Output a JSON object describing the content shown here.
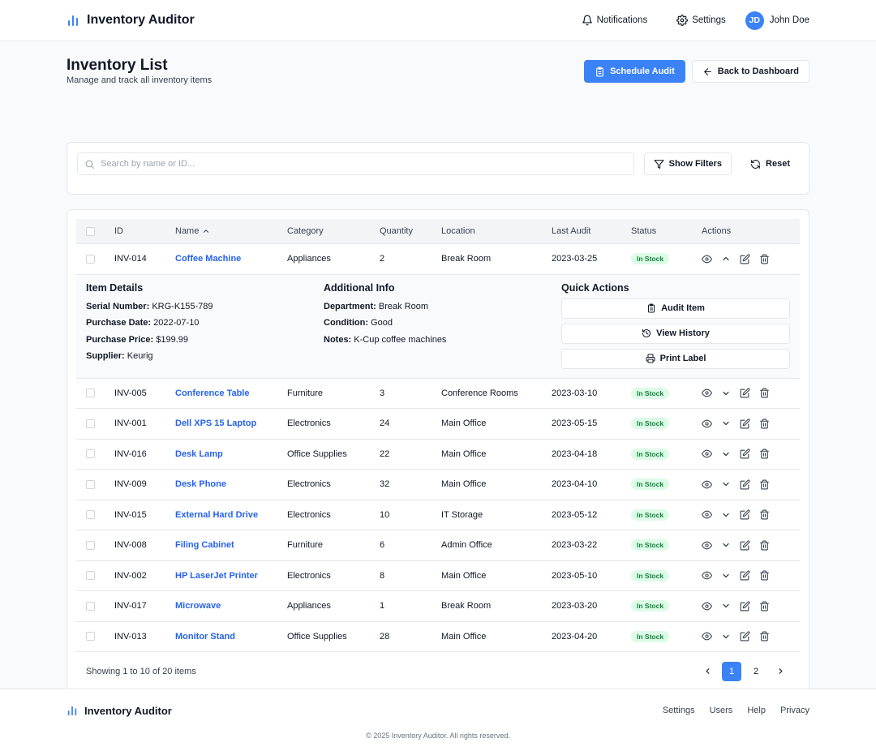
{
  "header": {
    "title": "Inventory Auditor",
    "notifications": "Notifications",
    "settings": "Settings",
    "user_initials": "JD",
    "user_name": "John Doe"
  },
  "page": {
    "title": "Inventory List",
    "subtitle": "Manage and track all inventory items",
    "schedule_audit": "Schedule Audit",
    "back_to_dashboard": "Back to Dashboard"
  },
  "search": {
    "placeholder": "Search by name or ID...",
    "show_filters": "Show Filters",
    "reset": "Reset"
  },
  "table": {
    "columns": [
      "ID",
      "Name",
      "Category",
      "Quantity",
      "Location",
      "Last Audit",
      "Status",
      "Actions"
    ],
    "rows": [
      {
        "id": "INV-014",
        "name": "Coffee Machine",
        "category": "Appliances",
        "quantity": "2",
        "location": "Break Room",
        "last_audit": "2023-03-25",
        "status": "In Stock"
      },
      {
        "id": "INV-005",
        "name": "Conference Table",
        "category": "Furniture",
        "quantity": "3",
        "location": "Conference Rooms",
        "last_audit": "2023-03-10",
        "status": "In Stock"
      },
      {
        "id": "INV-001",
        "name": "Dell XPS 15 Laptop",
        "category": "Electronics",
        "quantity": "24",
        "location": "Main Office",
        "last_audit": "2023-05-15",
        "status": "In Stock"
      },
      {
        "id": "INV-016",
        "name": "Desk Lamp",
        "category": "Office Supplies",
        "quantity": "22",
        "location": "Main Office",
        "last_audit": "2023-04-18",
        "status": "In Stock"
      },
      {
        "id": "INV-009",
        "name": "Desk Phone",
        "category": "Electronics",
        "quantity": "32",
        "location": "Main Office",
        "last_audit": "2023-04-10",
        "status": "In Stock"
      },
      {
        "id": "INV-015",
        "name": "External Hard Drive",
        "category": "Electronics",
        "quantity": "10",
        "location": "IT Storage",
        "last_audit": "2023-05-12",
        "status": "In Stock"
      },
      {
        "id": "INV-008",
        "name": "Filing Cabinet",
        "category": "Furniture",
        "quantity": "6",
        "location": "Admin Office",
        "last_audit": "2023-03-22",
        "status": "In Stock"
      },
      {
        "id": "INV-002",
        "name": "HP LaserJet Printer",
        "category": "Electronics",
        "quantity": "8",
        "location": "Main Office",
        "last_audit": "2023-05-10",
        "status": "In Stock"
      },
      {
        "id": "INV-017",
        "name": "Microwave",
        "category": "Appliances",
        "quantity": "1",
        "location": "Break Room",
        "last_audit": "2023-03-20",
        "status": "In Stock"
      },
      {
        "id": "INV-013",
        "name": "Monitor Stand",
        "category": "Office Supplies",
        "quantity": "28",
        "location": "Main Office",
        "last_audit": "2023-04-20",
        "status": "In Stock"
      }
    ]
  },
  "details": {
    "item_details_title": "Item Details",
    "serial_label": "Serial Number:",
    "serial_value": "KRG-K155-789",
    "purchase_date_label": "Purchase Date:",
    "purchase_date_value": "2022-07-10",
    "purchase_price_label": "Purchase Price:",
    "purchase_price_value": "$199.99",
    "supplier_label": "Supplier:",
    "supplier_value": "Keurig",
    "additional_title": "Additional Info",
    "department_label": "Department:",
    "department_value": "Break Room",
    "condition_label": "Condition:",
    "condition_value": "Good",
    "notes_label": "Notes:",
    "notes_value": "K-Cup coffee machines",
    "quick_title": "Quick Actions",
    "audit_item": "Audit Item",
    "view_history": "View History",
    "print_label": "Print Label"
  },
  "pagination": {
    "summary": "Showing 1 to 10 of 20 items",
    "pages": [
      "1",
      "2"
    ]
  },
  "footer": {
    "brand": "Inventory Auditor",
    "links": [
      "Settings",
      "Users",
      "Help",
      "Privacy"
    ],
    "copyright": "© 2025 Inventory Auditor. All rights reserved."
  },
  "colors": {
    "primary": "#3b82f6",
    "link": "#2563eb",
    "badge_bg": "#dcfce7",
    "badge_text": "#15803d"
  },
  "icons": [
    "bar-chart-icon",
    "bell-icon",
    "gear-icon",
    "clipboard-icon",
    "arrow-left-icon",
    "search-icon",
    "filter-icon",
    "refresh-icon",
    "eye-icon",
    "chevron-up-icon",
    "chevron-down-icon",
    "edit-icon",
    "trash-icon",
    "history-icon",
    "printer-icon",
    "chevron-left-icon",
    "chevron-right-icon",
    "sort-up-icon"
  ]
}
